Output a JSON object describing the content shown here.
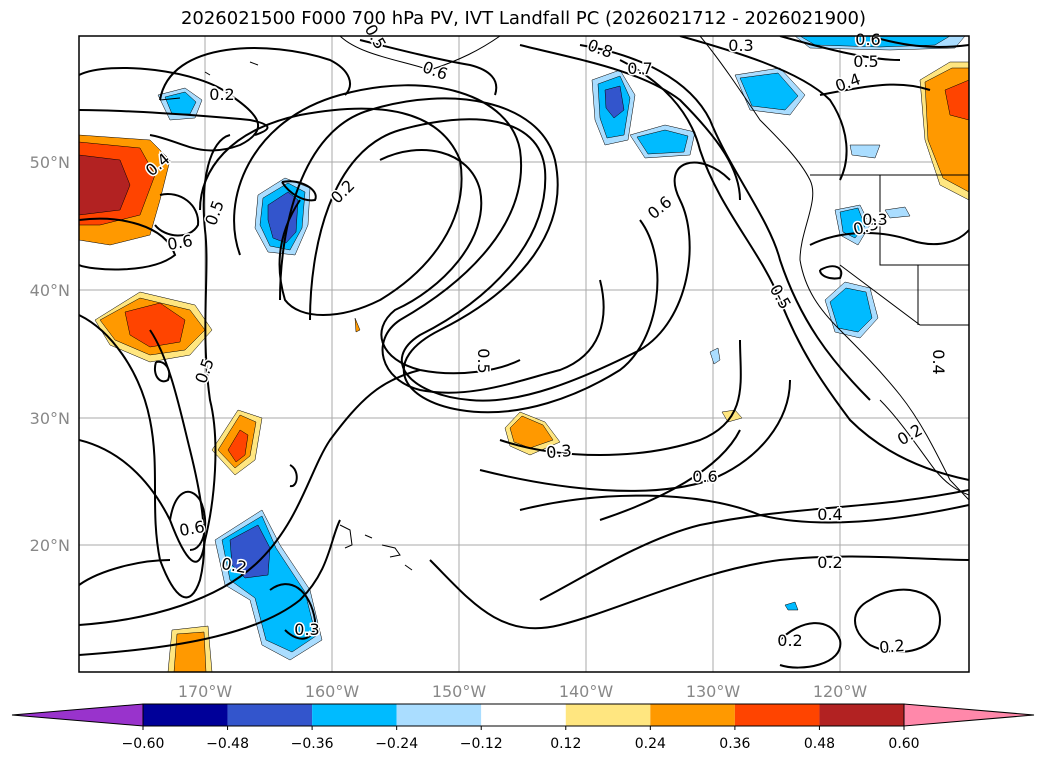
{
  "title": "2026021500 F000 700 hPa PV, IVT Landfall PC (2026021712 - 2026021900)",
  "lat_labels": [
    "50°N",
    "40°N",
    "30°N",
    "20°N"
  ],
  "lon_labels": [
    "170°W",
    "160°W",
    "150°W",
    "140°W",
    "130°W",
    "120°W"
  ],
  "colorbar": {
    "ticks": [
      "−0.60",
      "−0.48",
      "−0.36",
      "−0.24",
      "−0.12",
      "0.12",
      "0.24",
      "0.36",
      "0.48",
      "0.60"
    ],
    "colors": [
      "#9933cc",
      "#000099",
      "#3355cc",
      "#00bbff",
      "#aaddff",
      "#ffffff",
      "#ffe680",
      "#ff9900",
      "#ff4400",
      "#b22222",
      "#ff88aa"
    ]
  },
  "contour_labels": [
    {
      "text": "0.2"
    },
    {
      "text": "0.4"
    },
    {
      "text": "0.5"
    },
    {
      "text": "0.6"
    },
    {
      "text": "0.2"
    },
    {
      "text": "0.5"
    },
    {
      "text": "0.6"
    },
    {
      "text": "0.2"
    },
    {
      "text": "0.3"
    },
    {
      "text": "0.5"
    },
    {
      "text": "0.3"
    },
    {
      "text": "0.6"
    },
    {
      "text": "0.4"
    },
    {
      "text": "0.2"
    },
    {
      "text": "0.2"
    },
    {
      "text": "0.2"
    },
    {
      "text": "0.3"
    },
    {
      "text": "0.5"
    },
    {
      "text": "0.4"
    },
    {
      "text": "0.3"
    },
    {
      "text": "0.6"
    },
    {
      "text": "0.5"
    },
    {
      "text": "0.4"
    },
    {
      "text": "0.3"
    },
    {
      "text": "0.8"
    },
    {
      "text": "0.7"
    },
    {
      "text": "0.6"
    },
    {
      "text": "0.5"
    },
    {
      "text": "0.2"
    },
    {
      "text": "0.2"
    },
    {
      "text": "0.6"
    }
  ]
}
